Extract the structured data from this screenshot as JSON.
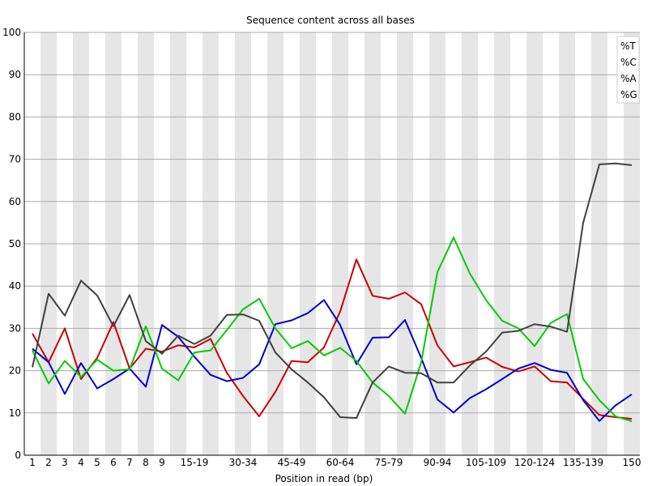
{
  "chart_data": {
    "type": "line",
    "title": "Sequence content across all bases",
    "xlabel": "Position in read (bp)",
    "ylabel": "",
    "ylim": [
      0,
      100
    ],
    "yticks": [
      0,
      10,
      20,
      30,
      40,
      50,
      60,
      70,
      80,
      90,
      100
    ],
    "grid": true,
    "legend_position": "top-right",
    "categories": [
      "1",
      "2",
      "3",
      "4",
      "5",
      "6",
      "7",
      "8",
      "9",
      "10-14",
      "15-19",
      "20-24",
      "25-29",
      "30-34",
      "35-39",
      "40-44",
      "45-49",
      "50-54",
      "55-59",
      "60-64",
      "65-69",
      "70-74",
      "75-79",
      "80-84",
      "85-89",
      "90-94",
      "95-99",
      "100-104",
      "105-109",
      "110-114",
      "115-119",
      "120-124",
      "125-129",
      "130-134",
      "135-139",
      "140-144",
      "145-149",
      "150"
    ],
    "tick_labels": [
      "1",
      "2",
      "3",
      "4",
      "5",
      "6",
      "7",
      "8",
      "9",
      "",
      "15-19",
      "",
      "",
      "30-34",
      "",
      "",
      "45-49",
      "",
      "",
      "60-64",
      "",
      "",
      "75-79",
      "",
      "",
      "90-94",
      "",
      "",
      "105-109",
      "",
      "",
      "120-124",
      "",
      "",
      "135-139",
      "",
      "",
      "150"
    ],
    "series": [
      {
        "name": "%T",
        "color": "#cc0000",
        "values": [
          28.8,
          22.0,
          30.0,
          18.0,
          23.0,
          31.5,
          20.5,
          25.2,
          24.5,
          26.0,
          25.5,
          27.5,
          19.5,
          14.0,
          9.2,
          15.0,
          22.3,
          22.0,
          25.5,
          34.0,
          46.3,
          37.7,
          37.0,
          38.5,
          35.7,
          26.0,
          21.0,
          22.0,
          23.1,
          20.9,
          19.8,
          21.0,
          17.5,
          17.2,
          13.3,
          9.5,
          9.0,
          8.6
        ]
      },
      {
        "name": "%C",
        "color": "#0000cc",
        "values": [
          25.2,
          22.0,
          14.5,
          21.8,
          15.8,
          18.0,
          20.5,
          16.2,
          30.8,
          28.0,
          23.3,
          19.0,
          17.5,
          18.3,
          21.5,
          31.0,
          31.9,
          33.6,
          36.7,
          30.8,
          21.5,
          27.8,
          27.9,
          32.0,
          23.0,
          13.2,
          10.1,
          13.5,
          15.6,
          18.0,
          20.5,
          21.8,
          20.2,
          19.5,
          13.0,
          8.1,
          11.8,
          14.4
        ]
      },
      {
        "name": "%A",
        "color": "#00cc00",
        "values": [
          24.8,
          17.0,
          22.3,
          18.5,
          22.6,
          20.0,
          20.3,
          30.5,
          20.5,
          17.7,
          24.3,
          24.8,
          29.6,
          34.5,
          37.0,
          30.0,
          25.3,
          27.0,
          23.6,
          25.4,
          22.3,
          17.2,
          14.0,
          9.8,
          22.0,
          43.3,
          51.5,
          43.0,
          36.7,
          31.8,
          30.0,
          25.8,
          31.3,
          33.4,
          18.0,
          13.0,
          9.2,
          8.0
        ]
      },
      {
        "name": "%G",
        "color": "#404040",
        "values": [
          20.8,
          38.2,
          33.0,
          41.3,
          37.8,
          30.5,
          37.9,
          27.0,
          24.0,
          28.3,
          26.3,
          28.3,
          33.2,
          33.3,
          31.8,
          24.3,
          20.3,
          17.2,
          13.7,
          9.0,
          8.8,
          17.2,
          21.0,
          19.5,
          19.4,
          17.2,
          17.2,
          21.2,
          24.5,
          29.0,
          29.4,
          31.0,
          30.4,
          29.2,
          55.0,
          68.8,
          69.0,
          68.6
        ]
      }
    ]
  }
}
